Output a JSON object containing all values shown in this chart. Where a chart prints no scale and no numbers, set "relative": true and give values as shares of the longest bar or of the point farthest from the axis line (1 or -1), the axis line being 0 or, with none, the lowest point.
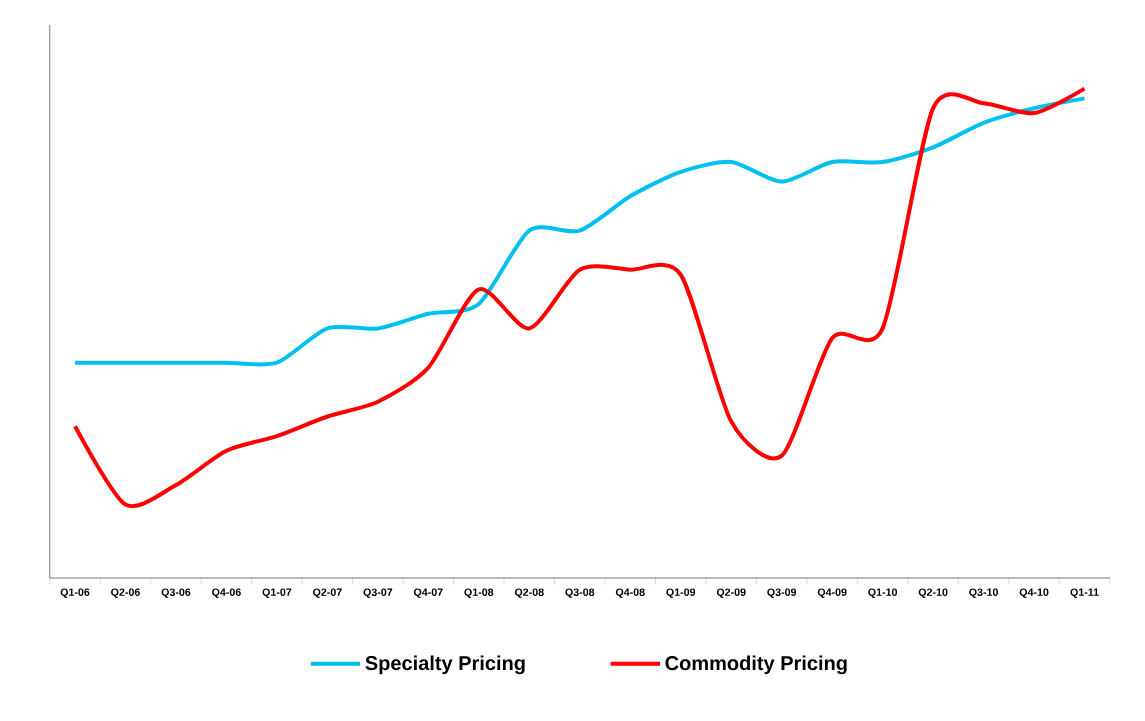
{
  "chart_data": {
    "type": "line",
    "relative": true,
    "legend": "bottom",
    "categories": [
      "Q1-06",
      "Q2-06",
      "Q3-06",
      "Q4-06",
      "Q1-07",
      "Q2-07",
      "Q3-07",
      "Q4-07",
      "Q1-08",
      "Q2-08",
      "Q3-08",
      "Q4-08",
      "Q1-09",
      "Q2-09",
      "Q3-09",
      "Q4-09",
      "Q1-10",
      "Q2-10",
      "Q3-10",
      "Q4-10",
      "Q1-11"
    ],
    "series": [
      {
        "name": "Specialty Pricing",
        "color": "#00c0f0",
        "values": [
          0.44,
          0.44,
          0.44,
          0.44,
          0.44,
          0.51,
          0.51,
          0.54,
          0.56,
          0.71,
          0.71,
          0.78,
          0.83,
          0.85,
          0.81,
          0.85,
          0.85,
          0.88,
          0.93,
          0.96,
          0.98
        ]
      },
      {
        "name": "Commodity Pricing",
        "color": "#ff0000",
        "values": [
          0.31,
          0.15,
          0.19,
          0.26,
          0.29,
          0.33,
          0.36,
          0.43,
          0.59,
          0.51,
          0.63,
          0.63,
          0.62,
          0.32,
          0.25,
          0.49,
          0.51,
          0.96,
          0.97,
          0.95,
          1
        ]
      }
    ]
  }
}
